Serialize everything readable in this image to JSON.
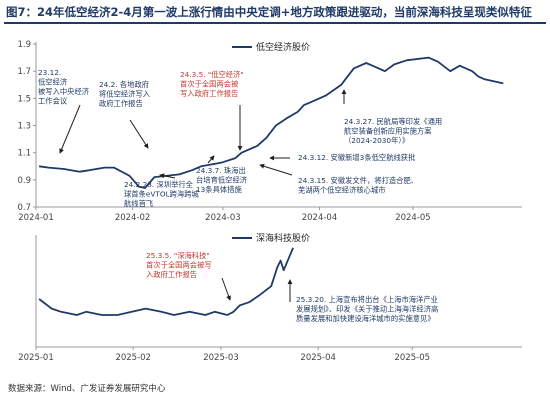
{
  "title": "图7：24年低空经济2-4月第一波上涨行情由中央定调+地方政策跟进驱动，当前深海科技呈现类似特征",
  "source": "数据来源：Wind、广发证券发展研究中心",
  "colors": {
    "line": "#1f3a66",
    "red_text": "#c0392b",
    "axis": "#999999"
  },
  "chart_data": [
    {
      "type": "line",
      "series": [
        {
          "name": "低空经济股价",
          "color": "#1f3a66"
        }
      ],
      "x_ticks": [
        "2024-01",
        "2024-02",
        "2024-03",
        "2024-04",
        "2024-05"
      ],
      "y_ticks": [
        "1.9",
        "1.7",
        "1.5",
        "1.3",
        "1.1",
        "0.9",
        "0.7"
      ],
      "ylim": [
        0.7,
        1.9
      ],
      "grid": false,
      "x": [
        "2024-01-02",
        "2024-01-05",
        "2024-01-10",
        "2024-01-15",
        "2024-01-18",
        "2024-01-23",
        "2024-01-26",
        "2024-01-31",
        "2024-02-03",
        "2024-02-05",
        "2024-02-08",
        "2024-02-16",
        "2024-02-20",
        "2024-02-23",
        "2024-02-28",
        "2024-03-01",
        "2024-03-05",
        "2024-03-07",
        "2024-03-12",
        "2024-03-15",
        "2024-03-18",
        "2024-03-22",
        "2024-03-25",
        "2024-03-27",
        "2024-03-29",
        "2024-04-03",
        "2024-04-08",
        "2024-04-10",
        "2024-04-12",
        "2024-04-16",
        "2024-04-18",
        "2024-04-22",
        "2024-04-25",
        "2024-04-29",
        "2024-05-06",
        "2024-05-09",
        "2024-05-13",
        "2024-05-16",
        "2024-05-20",
        "2024-05-22",
        "2024-05-24",
        "2024-05-28",
        "2024-05-30"
      ],
      "values": [
        1.0,
        0.99,
        0.98,
        0.96,
        0.97,
        0.99,
        0.99,
        0.93,
        0.85,
        0.84,
        0.92,
        0.94,
        0.97,
        1.0,
        1.02,
        1.03,
        1.06,
        1.1,
        1.15,
        1.21,
        1.3,
        1.36,
        1.4,
        1.45,
        1.47,
        1.52,
        1.6,
        1.66,
        1.72,
        1.76,
        1.74,
        1.7,
        1.75,
        1.78,
        1.8,
        1.77,
        1.7,
        1.74,
        1.7,
        1.66,
        1.64,
        1.62,
        1.61
      ],
      "annotations": [
        {
          "text": "23.12. 低空经济被写入中央经济工作会议",
          "lines": [
            "23.12.",
            "低空经济",
            "被写入中央经济",
            "工作会议"
          ],
          "color": "blue"
        },
        {
          "text": "24.2. 各地政府将低空经济写入政府工作报告",
          "lines": [
            "24.2. 各地政府",
            "将低空经济写入",
            "政府工作报告"
          ],
          "color": "blue"
        },
        {
          "text": "24.3.5. \"低空经济\"首次于全国两会被写入政府工作报告",
          "lines": [
            "24.3.5. \"低空经济\"",
            "首次于全国两会被",
            "写入政府工作报告"
          ],
          "color": "red"
        },
        {
          "text": "24.3.27. 民航局等印发《通用航空装备创新应用实施方案（2024-2030年）》",
          "lines": [
            "24.3.27. 民航局等印发《通用",
            "航空装备创新应用实施方案",
            "（2024-2030年）》"
          ],
          "color": "blue"
        },
        {
          "text": "24.3.12. 安徽新增3条低空航线获批",
          "lines": [
            "24.3.12.  安徽新增3条低空航线获批"
          ],
          "color": "blue"
        },
        {
          "text": "24.3.15. 安徽发文件，将打造合肥、芜湖两个低空经济核心城市",
          "lines": [
            "24.3.15.  安徽发文件，将打造合肥、",
            "芜湖两个低空经济核心城市"
          ],
          "color": "blue"
        },
        {
          "text": "24.2.28. 深圳举行全球首条eVTOL跨海跨城航线首飞",
          "lines": [
            "24.2.28.  深圳举行全",
            "球首条eVTOL跨海跨城",
            "航线首飞"
          ],
          "color": "blue"
        },
        {
          "text": "24.3.7. 珠海出台培育低空经济13条具体措施",
          "lines": [
            "24.3.7.  珠海出",
            "台培育低空经济",
            "13条具体措施"
          ],
          "color": "blue"
        }
      ]
    },
    {
      "type": "line",
      "series": [
        {
          "name": "深海科技股价",
          "color": "#1f3a66"
        }
      ],
      "x_ticks": [
        "2025-01",
        "2025-02",
        "2025-03",
        "2025-04",
        "2025-05"
      ],
      "x": [
        "2025-01-02",
        "2025-01-06",
        "2025-01-09",
        "2025-01-14",
        "2025-01-17",
        "2025-01-22",
        "2025-01-27",
        "2025-02-05",
        "2025-02-10",
        "2025-02-14",
        "2025-02-19",
        "2025-02-24",
        "2025-02-27",
        "2025-03-03",
        "2025-03-05",
        "2025-03-07",
        "2025-03-10",
        "2025-03-13",
        "2025-03-17",
        "2025-03-19",
        "2025-03-20",
        "2025-03-21",
        "2025-03-24"
      ],
      "values": [
        1.0,
        0.97,
        0.96,
        0.95,
        0.96,
        0.95,
        0.95,
        0.97,
        0.96,
        0.95,
        0.96,
        0.95,
        0.96,
        0.95,
        0.96,
        0.98,
        0.99,
        1.01,
        1.04,
        1.1,
        1.12,
        1.09,
        1.16
      ],
      "grid": false,
      "annotations": [
        {
          "text": "25.3.5. \"深海科技\"首次于全国两会被写入政府工作报告",
          "lines": [
            "25.3.5.  \"深海科技\"",
            "首次于全国两会被写",
            "入政府工作报告"
          ],
          "color": "red"
        },
        {
          "text": "25.3.20. 上海宣布将出台《上海市海洋产业发展规划》、印发《关于推动上海海洋经济高质量发展和加快建设海洋城市的实施意见》",
          "lines": [
            "25.3.20. 上海宣布将出台《上海市海洋产业",
            "发展规划》、印发《关于推动上海海洋经济高",
            "质量发展和加快建设海洋城市的实施意见》"
          ],
          "color": "blue"
        }
      ]
    }
  ]
}
